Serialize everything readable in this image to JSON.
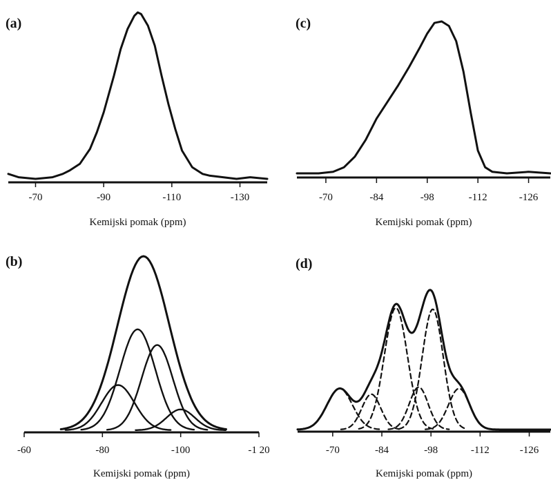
{
  "chart_data": [
    {
      "id": "a",
      "type": "line",
      "panel_label": "(a)",
      "xlabel": "Kemijski pomak (ppm)",
      "xlim": [
        -62,
        -138
      ],
      "xticks": [
        -70,
        -90,
        -110,
        -130
      ],
      "series": [
        {
          "style": "solid",
          "points": [
            [
              -62,
              0.03
            ],
            [
              -65,
              0.01
            ],
            [
              -70,
              0.0
            ],
            [
              -75,
              0.01
            ],
            [
              -78,
              0.03
            ],
            [
              -80,
              0.05
            ],
            [
              -83,
              0.09
            ],
            [
              -86,
              0.18
            ],
            [
              -88,
              0.28
            ],
            [
              -90,
              0.4
            ],
            [
              -93,
              0.62
            ],
            [
              -95,
              0.78
            ],
            [
              -97,
              0.9
            ],
            [
              -99,
              0.98
            ],
            [
              -100,
              1.0
            ],
            [
              -101,
              0.99
            ],
            [
              -103,
              0.92
            ],
            [
              -105,
              0.8
            ],
            [
              -107,
              0.62
            ],
            [
              -109,
              0.45
            ],
            [
              -111,
              0.3
            ],
            [
              -113,
              0.17
            ],
            [
              -116,
              0.07
            ],
            [
              -119,
              0.03
            ],
            [
              -121,
              0.02
            ],
            [
              -125,
              0.01
            ],
            [
              -129,
              0.0
            ],
            [
              -133,
              0.01
            ],
            [
              -138,
              0.0
            ]
          ]
        }
      ]
    },
    {
      "id": "b",
      "type": "line",
      "panel_label": "(b)",
      "xlabel": "Kemijski pomak (ppm)",
      "xlim": [
        -60,
        -120
      ],
      "xticks": [
        -60,
        -80,
        -100,
        -120
      ],
      "xtick_labels": [
        "-60",
        "-80",
        "-100",
        "-1 20"
      ],
      "series": [
        {
          "style": "solid",
          "type": "gaussian",
          "center": -90.5,
          "height": 1.0,
          "width": 6.6
        },
        {
          "style": "solid",
          "type": "gaussian",
          "center": -89,
          "height": 0.58,
          "width": 4.5
        },
        {
          "style": "solid",
          "type": "gaussian",
          "center": -94,
          "height": 0.49,
          "width": 4.0
        },
        {
          "style": "solid",
          "type": "gaussian",
          "center": -84,
          "height": 0.26,
          "width": 4.2
        },
        {
          "style": "solid",
          "type": "gaussian",
          "center": -100,
          "height": 0.12,
          "width": 3.6
        }
      ]
    },
    {
      "id": "c",
      "type": "line",
      "panel_label": "(c)",
      "xlabel": "Kemijski pomak (ppm)",
      "xlim": [
        -62,
        -132
      ],
      "xticks": [
        -70,
        -84,
        -98,
        -112,
        -126
      ],
      "series": [
        {
          "style": "solid",
          "points": [
            [
              -62,
              0.0
            ],
            [
              -68,
              0.0
            ],
            [
              -72,
              0.01
            ],
            [
              -75,
              0.04
            ],
            [
              -78,
              0.11
            ],
            [
              -81,
              0.22
            ],
            [
              -84,
              0.36
            ],
            [
              -87,
              0.47
            ],
            [
              -90,
              0.58
            ],
            [
              -93,
              0.7
            ],
            [
              -96,
              0.83
            ],
            [
              -98,
              0.92
            ],
            [
              -100,
              0.99
            ],
            [
              -102,
              1.0
            ],
            [
              -104,
              0.97
            ],
            [
              -106,
              0.87
            ],
            [
              -108,
              0.67
            ],
            [
              -110,
              0.4
            ],
            [
              -112,
              0.15
            ],
            [
              -114,
              0.04
            ],
            [
              -116,
              0.01
            ],
            [
              -120,
              0.0
            ],
            [
              -126,
              0.01
            ],
            [
              -132,
              0.0
            ]
          ]
        }
      ]
    },
    {
      "id": "d",
      "type": "line",
      "panel_label": "(d)",
      "xlabel": "Kemijski pomak (ppm)",
      "xlim": [
        -60,
        -132
      ],
      "xticks": [
        -70,
        -84,
        -98,
        -112,
        -126
      ],
      "series": [
        {
          "style": "solid",
          "type": "envelope"
        },
        {
          "style": "dashed",
          "type": "gaussian",
          "center": -72,
          "height": 0.29,
          "width": 3.6
        },
        {
          "style": "dashed",
          "type": "gaussian",
          "center": -81,
          "height": 0.25,
          "width": 2.7
        },
        {
          "style": "dashed",
          "type": "gaussian",
          "center": -88,
          "height": 0.86,
          "width": 3.3
        },
        {
          "style": "dashed",
          "type": "gaussian",
          "center": -94.5,
          "height": 0.3,
          "width": 2.7
        },
        {
          "style": "dashed",
          "type": "gaussian",
          "center": -98.5,
          "height": 0.85,
          "width": 3.0
        },
        {
          "style": "dashed",
          "type": "gaussian",
          "center": -106,
          "height": 0.29,
          "width": 3.0
        }
      ]
    }
  ]
}
